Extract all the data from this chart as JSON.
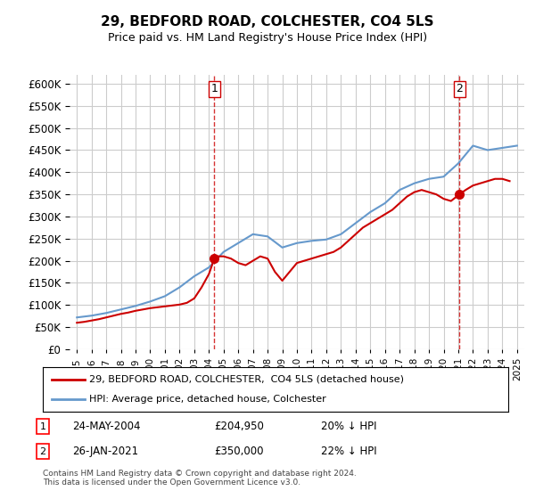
{
  "title": "29, BEDFORD ROAD, COLCHESTER, CO4 5LS",
  "subtitle": "Price paid vs. HM Land Registry's House Price Index (HPI)",
  "footnote": "Contains HM Land Registry data © Crown copyright and database right 2024.\nThis data is licensed under the Open Government Licence v3.0.",
  "legend_line1": "29, BEDFORD ROAD, COLCHESTER,  CO4 5LS (detached house)",
  "legend_line2": "HPI: Average price, detached house, Colchester",
  "sale1_label": "1",
  "sale1_date": "24-MAY-2004",
  "sale1_price": "£204,950",
  "sale1_hpi": "20% ↓ HPI",
  "sale2_label": "2",
  "sale2_date": "26-JAN-2021",
  "sale2_price": "£350,000",
  "sale2_hpi": "22% ↓ HPI",
  "hpi_years": [
    1995,
    1996,
    1997,
    1998,
    1999,
    2000,
    2001,
    2002,
    2003,
    2004,
    2005,
    2006,
    2007,
    2008,
    2009,
    2010,
    2011,
    2012,
    2013,
    2014,
    2015,
    2016,
    2017,
    2018,
    2019,
    2020,
    2021,
    2022,
    2023,
    2024,
    2025
  ],
  "hpi_values": [
    72000,
    76000,
    82000,
    90000,
    98000,
    108000,
    120000,
    140000,
    165000,
    185000,
    220000,
    240000,
    260000,
    255000,
    230000,
    240000,
    245000,
    248000,
    260000,
    285000,
    310000,
    330000,
    360000,
    375000,
    385000,
    390000,
    420000,
    460000,
    450000,
    455000,
    460000
  ],
  "prop_years": [
    1995.0,
    1995.5,
    1996.0,
    1996.5,
    1997.0,
    1997.5,
    1998.0,
    1998.5,
    1999.0,
    1999.5,
    2000.0,
    2000.5,
    2001.0,
    2001.5,
    2002.0,
    2002.5,
    2003.0,
    2003.5,
    2004.0,
    2004.37,
    2004.5,
    2005.0,
    2005.5,
    2006.0,
    2006.5,
    2007.0,
    2007.5,
    2008.0,
    2008.5,
    2009.0,
    2009.5,
    2010.0,
    2010.5,
    2011.0,
    2011.5,
    2012.0,
    2012.5,
    2013.0,
    2013.5,
    2014.0,
    2014.5,
    2015.0,
    2015.5,
    2016.0,
    2016.5,
    2017.0,
    2017.5,
    2018.0,
    2018.5,
    2019.0,
    2019.5,
    2020.0,
    2020.5,
    2021.08,
    2021.5,
    2022.0,
    2022.5,
    2023.0,
    2023.5,
    2024.0,
    2024.5
  ],
  "prop_values": [
    60000,
    62000,
    65000,
    68000,
    72000,
    76000,
    80000,
    83000,
    87000,
    90000,
    93000,
    95000,
    97000,
    99000,
    101000,
    105000,
    115000,
    140000,
    170000,
    204950,
    210000,
    210000,
    205000,
    195000,
    190000,
    200000,
    210000,
    205000,
    175000,
    155000,
    175000,
    195000,
    200000,
    205000,
    210000,
    215000,
    220000,
    230000,
    245000,
    260000,
    275000,
    285000,
    295000,
    305000,
    315000,
    330000,
    345000,
    355000,
    360000,
    355000,
    350000,
    340000,
    335000,
    350000,
    360000,
    370000,
    375000,
    380000,
    385000,
    385000,
    380000
  ],
  "sale1_x": 2004.37,
  "sale1_y": 204950,
  "sale2_x": 2021.08,
  "sale2_y": 350000,
  "vline1_x": 2004.37,
  "vline2_x": 2021.08,
  "ylim": [
    0,
    620000
  ],
  "xlim": [
    1994.5,
    2025.5
  ],
  "red_color": "#cc0000",
  "blue_color": "#6699cc",
  "marker_color": "#cc0000",
  "vline_color": "#cc0000",
  "background_color": "#ffffff",
  "grid_color": "#cccccc"
}
